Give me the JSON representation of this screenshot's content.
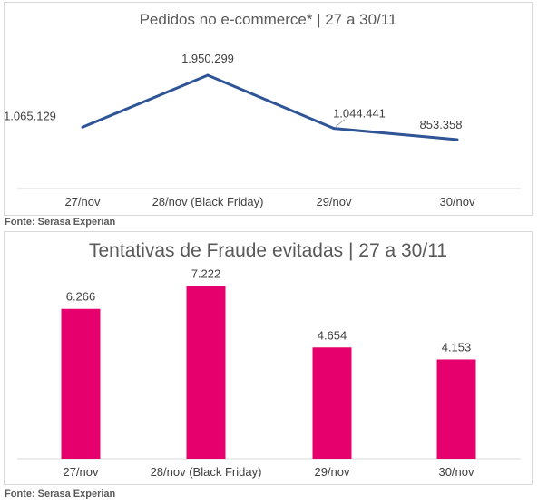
{
  "charts": [
    {
      "type": "line",
      "title": "Pedidos no e-commerce* | 27 a 30/11",
      "categories": [
        "27/nov",
        "28/nov (Black Friday)",
        "29/nov",
        "30/nov"
      ],
      "values": [
        1065129,
        1950299,
        1044441,
        853358
      ],
      "value_labels": [
        "1.065.129",
        "1.950.299",
        "1.044.441",
        "853.358"
      ],
      "color": "#2f5597",
      "source": "Fonte: Serasa Experian"
    },
    {
      "type": "bar",
      "title": "Tentativas de Fraude evitadas | 27 a 30/11",
      "categories": [
        "27/nov",
        "28/nov (Black Friday)",
        "29/nov",
        "30/nov"
      ],
      "values": [
        6266,
        7222,
        4654,
        4153
      ],
      "value_labels": [
        "6.266",
        "7.222",
        "4.654",
        "4.153"
      ],
      "color": "#e5006d",
      "source": "Fonte: Serasa Experian"
    }
  ],
  "chart_data": [
    {
      "type": "line",
      "title": "Pedidos no e-commerce* | 27 a 30/11",
      "categories": [
        "27/nov",
        "28/nov (Black Friday)",
        "29/nov",
        "30/nov"
      ],
      "values": [
        1065129,
        1950299,
        1044441,
        853358
      ],
      "grid": false,
      "legend": "none"
    },
    {
      "type": "bar",
      "title": "Tentativas de Fraude evitadas | 27 a 30/11",
      "categories": [
        "27/nov",
        "28/nov (Black Friday)",
        "29/nov",
        "30/nov"
      ],
      "values": [
        6266,
        7222,
        4654,
        4153
      ],
      "ylim": [
        0,
        8000
      ],
      "grid": false,
      "legend": "none"
    }
  ]
}
